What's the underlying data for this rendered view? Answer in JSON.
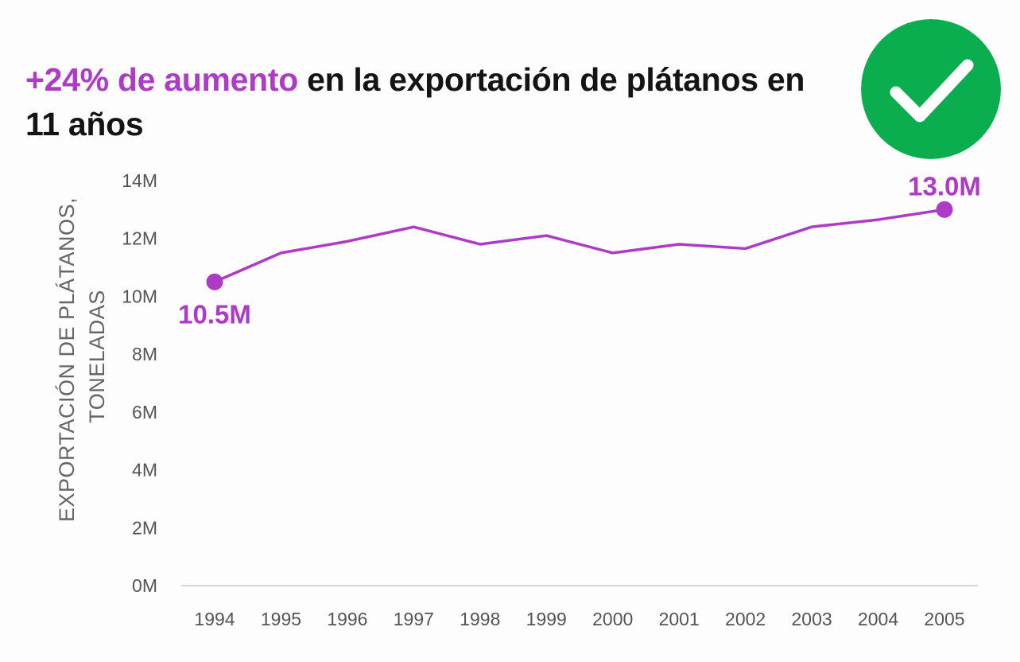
{
  "title": {
    "highlight": "+24% de aumento",
    "rest": " en la exportación de plátanos en 11 años"
  },
  "badge": {
    "icon": "check-icon",
    "color": "#0aae4e"
  },
  "colors": {
    "accent": "#ad3bc6",
    "axis": "#d4d4d4",
    "text": "#141414"
  },
  "chart_data": {
    "type": "line",
    "x": [
      "1994",
      "1995",
      "1996",
      "1997",
      "1998",
      "1999",
      "2000",
      "2001",
      "2002",
      "2003",
      "2004",
      "2005"
    ],
    "series": [
      {
        "values": [
          10.5,
          11.5,
          11.9,
          12.4,
          11.8,
          12.1,
          11.5,
          11.8,
          11.65,
          12.4,
          12.65,
          13.0
        ]
      }
    ],
    "ylabel_line1": "EXPORTACIÓN DE PLÁTANOS,",
    "ylabel_line2": "TONELADAS",
    "yticks": [
      0,
      2,
      4,
      6,
      8,
      10,
      12,
      14
    ],
    "ytick_labels": [
      "0M",
      "2M",
      "4M",
      "6M",
      "8M",
      "10M",
      "12M",
      "14M"
    ],
    "ylim": [
      0,
      14
    ],
    "grid": false,
    "annotations": [
      {
        "index": 0,
        "text": "10.5M",
        "position": "below"
      },
      {
        "index": 11,
        "text": "13.0M",
        "position": "above"
      }
    ]
  }
}
